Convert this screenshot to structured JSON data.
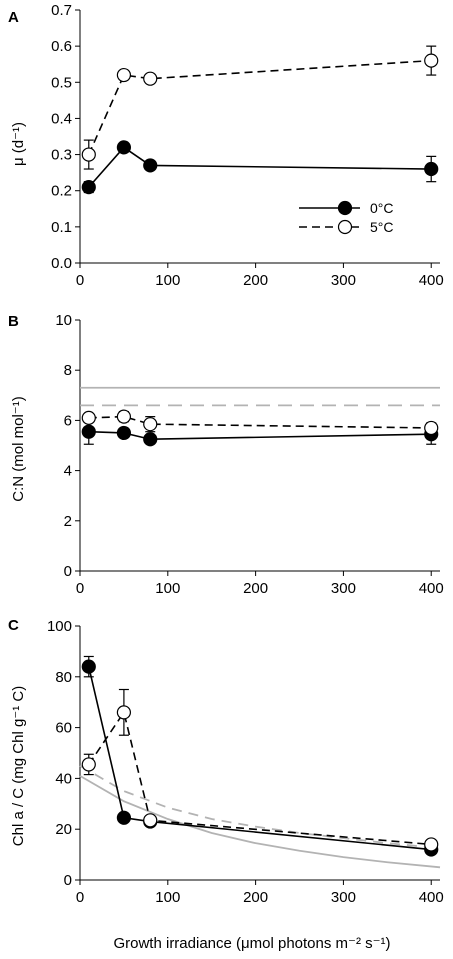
{
  "figure": {
    "xlabel": "Growth irradiance (μmol photons m⁻² s⁻¹)"
  },
  "legend": {
    "entries": [
      {
        "label": "0°C",
        "marker": "filled",
        "line": "solid"
      },
      {
        "label": "5°C",
        "marker": "open",
        "line": "dashed"
      }
    ]
  },
  "colors": {
    "series_0C": "#000000",
    "series_5C": "#000000",
    "reference": "#b3b3b3"
  },
  "chart_data": [
    {
      "type": "line",
      "panel": "A",
      "ylabel": "μ (d⁻¹)",
      "xlim": [
        0,
        410
      ],
      "ylim": [
        0,
        0.7
      ],
      "xticks": [
        0,
        100,
        200,
        300,
        400
      ],
      "yticks": [
        0.0,
        0.1,
        0.2,
        0.3,
        0.4,
        0.5,
        0.6,
        0.7
      ],
      "ytick_labels": [
        "0.0",
        "0.1",
        "0.2",
        "0.3",
        "0.4",
        "0.5",
        "0.6",
        "0.7"
      ],
      "legend_position": "lower-right",
      "series": [
        {
          "name": "0°C",
          "x": [
            10,
            50,
            80,
            400
          ],
          "values": [
            0.21,
            0.32,
            0.27,
            0.26
          ],
          "errors": [
            0.015,
            0.0,
            0.0,
            0.035
          ],
          "style": "solid",
          "marker": "filled"
        },
        {
          "name": "5°C",
          "x": [
            10,
            50,
            80,
            400
          ],
          "values": [
            0.3,
            0.52,
            0.51,
            0.56
          ],
          "errors": [
            0.04,
            0.0,
            0.0,
            0.04
          ],
          "style": "dashed",
          "marker": "open"
        }
      ],
      "reference_lines": []
    },
    {
      "type": "line",
      "panel": "B",
      "ylabel": "C:N (mol mol⁻¹)",
      "xlim": [
        0,
        410
      ],
      "ylim": [
        0,
        10
      ],
      "xticks": [
        0,
        100,
        200,
        300,
        400
      ],
      "yticks": [
        0,
        2,
        4,
        6,
        8,
        10
      ],
      "ytick_labels": [
        "0",
        "2",
        "4",
        "6",
        "8",
        "10"
      ],
      "series": [
        {
          "name": "0°C",
          "x": [
            10,
            50,
            80,
            400
          ],
          "values": [
            5.55,
            5.5,
            5.25,
            5.45
          ],
          "errors": [
            0.5,
            0.0,
            0.0,
            0.4
          ],
          "style": "solid",
          "marker": "filled"
        },
        {
          "name": "5°C",
          "x": [
            10,
            50,
            80,
            400
          ],
          "values": [
            6.1,
            6.15,
            5.85,
            5.7
          ],
          "errors": [
            0.15,
            0.2,
            0.3,
            0.2
          ],
          "style": "dashed",
          "marker": "open"
        }
      ],
      "reference_lines": [
        {
          "y": 7.3,
          "style": "solid"
        },
        {
          "y": 6.6,
          "style": "dashed"
        }
      ]
    },
    {
      "type": "line",
      "panel": "C",
      "ylabel": "Chl a / C (mg Chl g⁻¹ C)",
      "xlim": [
        0,
        410
      ],
      "ylim": [
        0,
        100
      ],
      "xticks": [
        0,
        100,
        200,
        300,
        400
      ],
      "yticks": [
        0,
        20,
        40,
        60,
        80,
        100
      ],
      "ytick_labels": [
        "0",
        "20",
        "40",
        "60",
        "80",
        "100"
      ],
      "series": [
        {
          "name": "0°C",
          "x": [
            10,
            50,
            80,
            400
          ],
          "values": [
            84,
            24.5,
            23,
            12
          ],
          "errors": [
            4,
            0,
            0,
            0
          ],
          "style": "solid",
          "marker": "filled"
        },
        {
          "name": "5°C",
          "x": [
            10,
            50,
            80,
            400
          ],
          "values": [
            45.5,
            66,
            23.5,
            14
          ],
          "errors": [
            4,
            9,
            0,
            0
          ],
          "style": "dashed",
          "marker": "open"
        }
      ],
      "reference_curves": [
        {
          "style": "solid",
          "x": [
            0,
            50,
            100,
            150,
            200,
            250,
            300,
            350,
            410
          ],
          "values": [
            41,
            31,
            24,
            18.5,
            14.5,
            11.5,
            9,
            7,
            5
          ]
        },
        {
          "style": "dashed",
          "x": [
            0,
            50,
            100,
            150,
            200,
            250,
            300,
            350,
            410
          ],
          "values": [
            45,
            35,
            28.5,
            24,
            21,
            18.5,
            16.5,
            14.5,
            12.5
          ]
        }
      ]
    }
  ]
}
